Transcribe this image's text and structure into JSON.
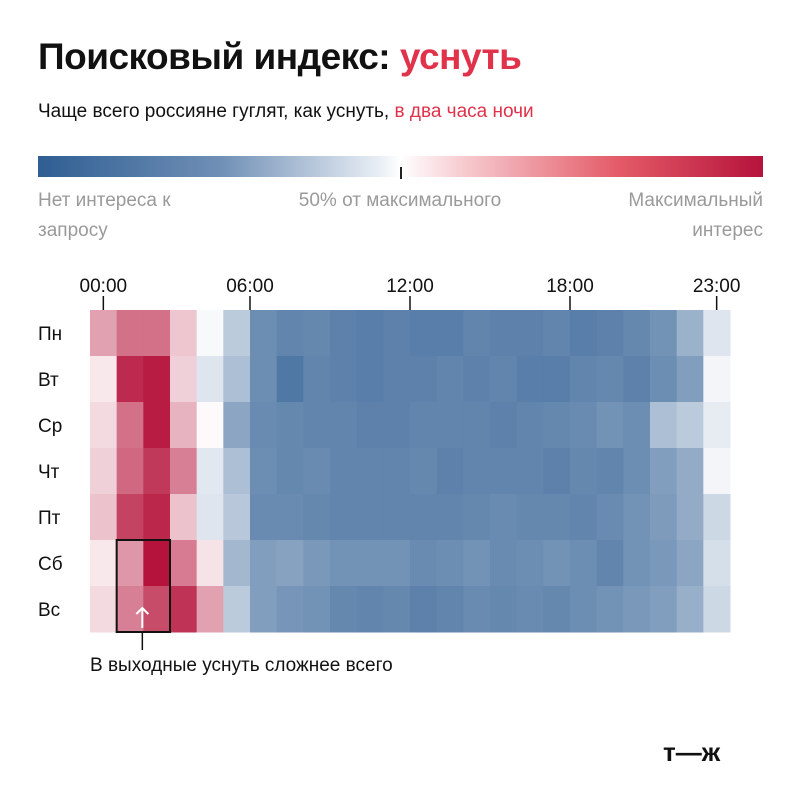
{
  "title": {
    "main": "Поисковый индекс:",
    "accent": "уснуть"
  },
  "subtitle": {
    "main": "Чаще всего россияне гуглят, как уснуть,",
    "accent": "в два часа ночи"
  },
  "legend": {
    "left": "Нет интереса к запросу",
    "middle": "50% от максимального",
    "right": "Максимальный интерес",
    "colors": {
      "low": "#2f5e93",
      "mid": "#ffffff",
      "high": "#b5133b"
    }
  },
  "annotation": "В выходные уснуть сложнее всего",
  "logo": "т—ж",
  "chart_data": {
    "type": "heatmap",
    "value_unit": "percent of maximum search interest",
    "x_ticks": [
      "00:00",
      "06:00",
      "12:00",
      "18:00",
      "23:00"
    ],
    "x_tick_hours": [
      0,
      6,
      12,
      18,
      23
    ],
    "hours": [
      0,
      1,
      2,
      3,
      4,
      5,
      6,
      7,
      8,
      9,
      10,
      11,
      12,
      13,
      14,
      15,
      16,
      17,
      18,
      19,
      20,
      21,
      22,
      23
    ],
    "rows": [
      "Пн",
      "Вт",
      "Ср",
      "Чт",
      "Пт",
      "Сб",
      "Вс"
    ],
    "values": [
      [
        70,
        80,
        80,
        62,
        48,
        34,
        15,
        12,
        13,
        11,
        10,
        11,
        10,
        10,
        12,
        11,
        11,
        12,
        10,
        11,
        13,
        16,
        26,
        42
      ],
      [
        55,
        95,
        98,
        60,
        42,
        30,
        15,
        8,
        12,
        11,
        10,
        11,
        11,
        12,
        11,
        12,
        10,
        10,
        12,
        13,
        11,
        15,
        20,
        47
      ],
      [
        58,
        80,
        98,
        66,
        51,
        22,
        14,
        13,
        12,
        12,
        11,
        11,
        12,
        12,
        12,
        11,
        12,
        13,
        14,
        16,
        15,
        30,
        34,
        44
      ],
      [
        60,
        82,
        92,
        77,
        43,
        30,
        15,
        13,
        14,
        12,
        12,
        12,
        13,
        11,
        12,
        12,
        12,
        11,
        13,
        12,
        15,
        20,
        24,
        47
      ],
      [
        63,
        90,
        96,
        63,
        42,
        33,
        14,
        14,
        13,
        12,
        12,
        12,
        12,
        12,
        13,
        14,
        13,
        13,
        12,
        14,
        16,
        19,
        24,
        38
      ],
      [
        55,
        72,
        100,
        78,
        56,
        28,
        20,
        21,
        18,
        16,
        16,
        16,
        14,
        15,
        16,
        14,
        15,
        16,
        15,
        12,
        16,
        18,
        22,
        40
      ],
      [
        58,
        77,
        88,
        93,
        70,
        34,
        20,
        17,
        16,
        13,
        12,
        13,
        11,
        12,
        14,
        13,
        14,
        13,
        15,
        16,
        18,
        20,
        25,
        38
      ]
    ],
    "highlight": {
      "rows": [
        "Сб",
        "Вс"
      ],
      "hours": [
        1,
        2
      ]
    },
    "grid": false
  }
}
